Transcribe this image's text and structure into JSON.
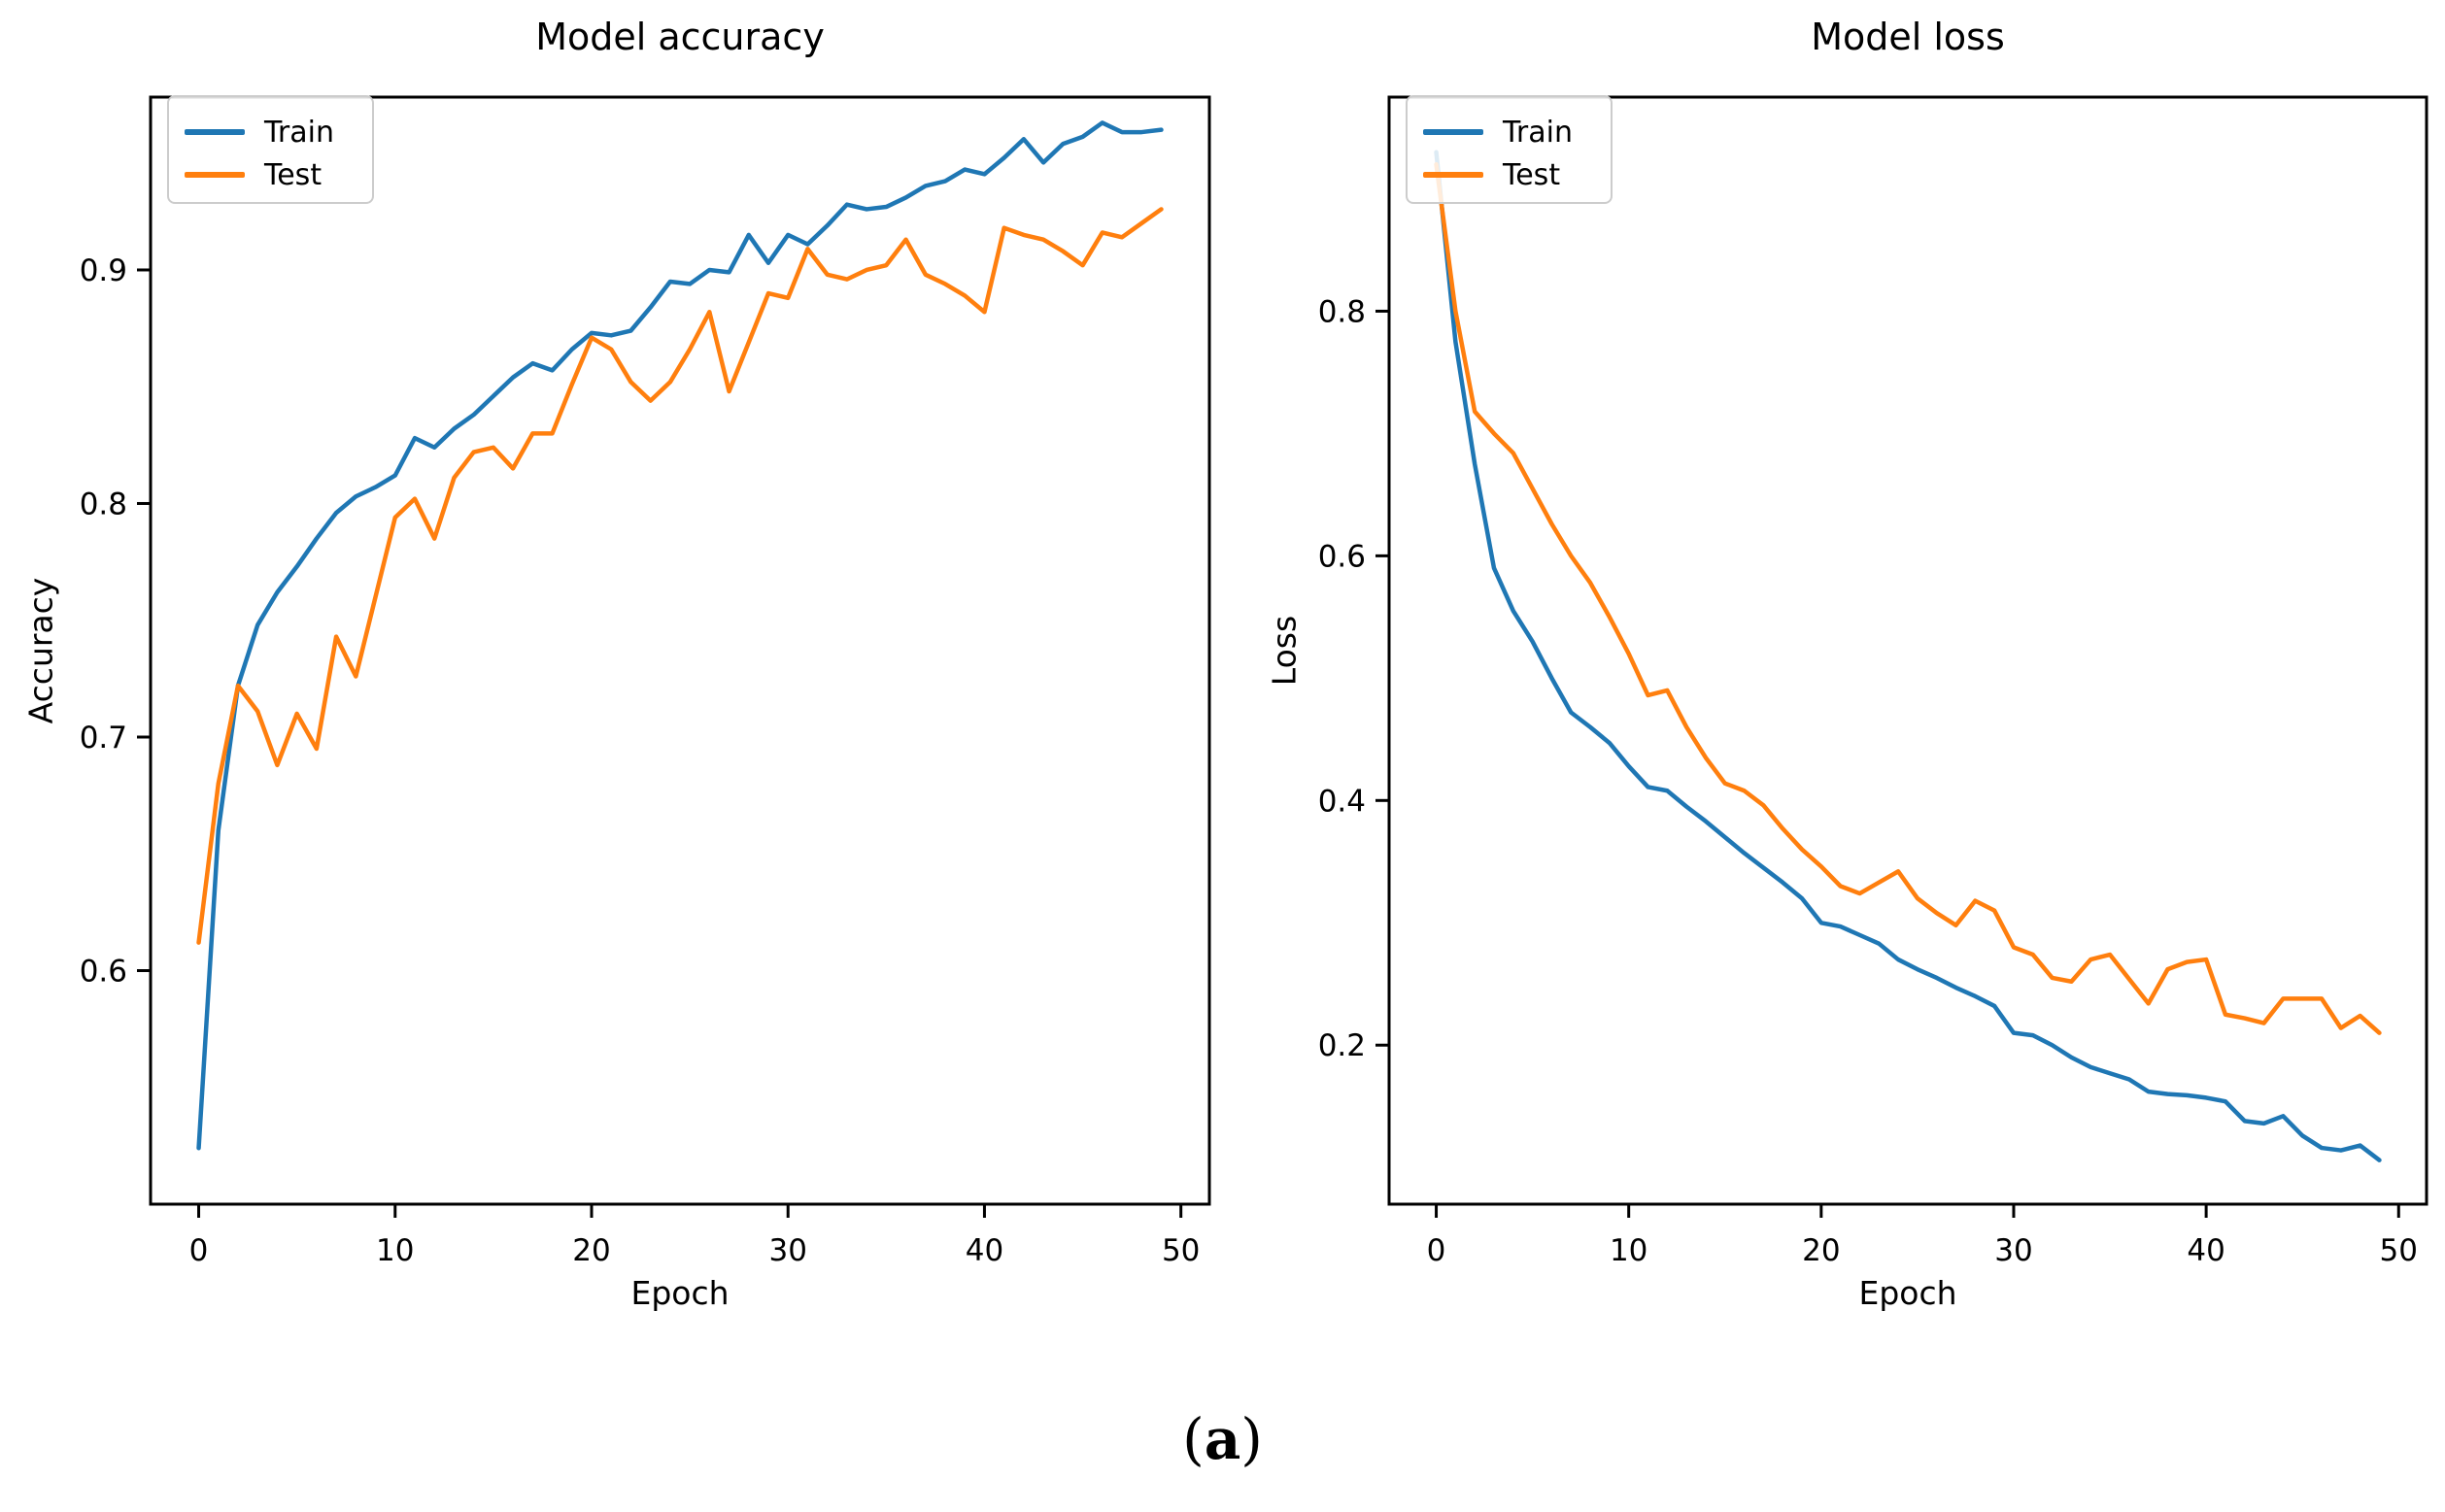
{
  "figure": {
    "caption": {
      "open": "(",
      "letter": "a",
      "close": ")"
    }
  },
  "chart_data": [
    {
      "type": "line",
      "title": "Model accuracy",
      "xlabel": "Epoch",
      "ylabel": "Accuracy",
      "grid": false,
      "legend_position": "upper left",
      "xlim": [
        -2.45,
        51.45
      ],
      "ylim": [
        0.5,
        0.974
      ],
      "x_ticks": [
        0,
        10,
        20,
        30,
        40,
        50
      ],
      "y_ticks": [
        0.6,
        0.7,
        0.8,
        0.9
      ],
      "x": [
        0,
        1,
        2,
        3,
        4,
        5,
        6,
        7,
        8,
        9,
        10,
        11,
        12,
        13,
        14,
        15,
        16,
        17,
        18,
        19,
        20,
        21,
        22,
        23,
        24,
        25,
        26,
        27,
        28,
        29,
        30,
        31,
        32,
        33,
        34,
        35,
        36,
        37,
        38,
        39,
        40,
        41,
        42,
        43,
        44,
        45,
        46,
        47,
        48,
        49
      ],
      "series": [
        {
          "name": "Train",
          "color": "#1f77b4",
          "values": [
            0.524,
            0.66,
            0.722,
            0.748,
            0.762,
            0.773,
            0.785,
            0.796,
            0.803,
            0.807,
            0.812,
            0.828,
            0.824,
            0.832,
            0.838,
            0.846,
            0.854,
            0.86,
            0.857,
            0.866,
            0.873,
            0.872,
            0.874,
            0.884,
            0.895,
            0.894,
            0.9,
            0.899,
            0.915,
            0.903,
            0.915,
            0.911,
            0.919,
            0.928,
            0.926,
            0.927,
            0.931,
            0.936,
            0.938,
            0.943,
            0.941,
            0.948,
            0.956,
            0.946,
            0.954,
            0.957,
            0.963,
            0.959,
            0.959,
            0.96
          ]
        },
        {
          "name": "Test",
          "color": "#ff7f0e",
          "values": [
            0.612,
            0.68,
            0.722,
            0.711,
            0.688,
            0.71,
            0.695,
            0.743,
            0.726,
            0.76,
            0.794,
            0.802,
            0.785,
            0.811,
            0.822,
            0.824,
            0.815,
            0.83,
            0.83,
            0.851,
            0.871,
            0.866,
            0.852,
            0.844,
            0.852,
            0.866,
            0.882,
            0.848,
            0.869,
            0.89,
            0.888,
            0.909,
            0.898,
            0.896,
            0.9,
            0.902,
            0.913,
            0.898,
            0.894,
            0.889,
            0.882,
            0.918,
            0.915,
            0.913,
            0.908,
            0.902,
            0.916,
            0.914,
            0.92,
            0.926
          ]
        }
      ]
    },
    {
      "type": "line",
      "title": "Model loss",
      "xlabel": "Epoch",
      "ylabel": "Loss",
      "grid": false,
      "legend_position": "upper left",
      "xlim": [
        -2.45,
        51.45
      ],
      "ylim": [
        0.07,
        0.975
      ],
      "x_ticks": [
        0,
        10,
        20,
        30,
        40,
        50
      ],
      "y_ticks": [
        0.2,
        0.4,
        0.6,
        0.8
      ],
      "x": [
        0,
        1,
        2,
        3,
        4,
        5,
        6,
        7,
        8,
        9,
        10,
        11,
        12,
        13,
        14,
        15,
        16,
        17,
        18,
        19,
        20,
        21,
        22,
        23,
        24,
        25,
        26,
        27,
        28,
        29,
        30,
        31,
        32,
        33,
        34,
        35,
        36,
        37,
        38,
        39,
        40,
        41,
        42,
        43,
        44,
        45,
        46,
        47,
        48,
        49
      ],
      "series": [
        {
          "name": "Train",
          "color": "#1f77b4",
          "values": [
            0.93,
            0.775,
            0.675,
            0.59,
            0.555,
            0.53,
            0.5,
            0.472,
            0.46,
            0.447,
            0.428,
            0.411,
            0.408,
            0.395,
            0.383,
            0.37,
            0.357,
            0.345,
            0.333,
            0.32,
            0.3,
            0.297,
            0.29,
            0.283,
            0.27,
            0.262,
            0.255,
            0.247,
            0.24,
            0.232,
            0.21,
            0.208,
            0.2,
            0.19,
            0.182,
            0.177,
            0.172,
            0.162,
            0.16,
            0.159,
            0.157,
            0.154,
            0.138,
            0.136,
            0.142,
            0.126,
            0.116,
            0.114,
            0.118,
            0.106
          ]
        },
        {
          "name": "Test",
          "color": "#ff7f0e",
          "values": [
            0.92,
            0.8,
            0.718,
            0.7,
            0.684,
            0.655,
            0.626,
            0.6,
            0.578,
            0.55,
            0.52,
            0.486,
            0.49,
            0.46,
            0.435,
            0.414,
            0.408,
            0.396,
            0.377,
            0.36,
            0.346,
            0.33,
            0.324,
            0.333,
            0.342,
            0.32,
            0.308,
            0.298,
            0.318,
            0.31,
            0.28,
            0.274,
            0.255,
            0.252,
            0.27,
            0.274,
            0.254,
            0.234,
            0.262,
            0.268,
            0.27,
            0.225,
            0.222,
            0.218,
            0.238,
            0.238,
            0.238,
            0.214,
            0.224,
            0.21
          ]
        }
      ]
    }
  ]
}
